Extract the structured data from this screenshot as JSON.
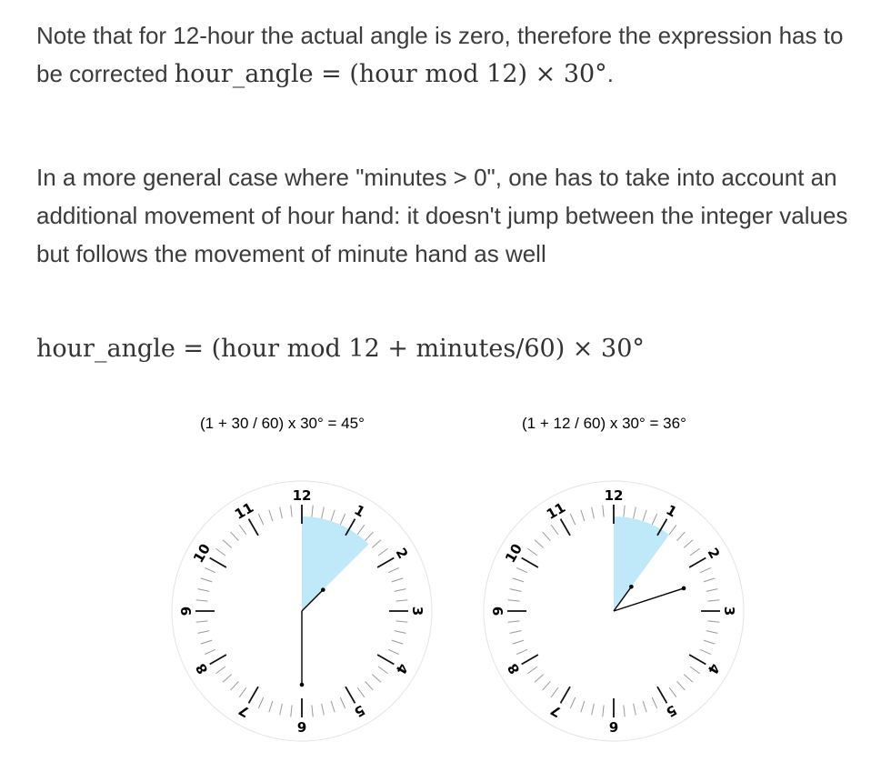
{
  "paragraph1": {
    "text_before": "Note that for 12-hour the actual angle is zero, therefore the expression has to be corrected ",
    "formula": "hour_angle = (hour mod 12) × 30°",
    "text_after": "."
  },
  "paragraph2": {
    "text": "In a more general case where \"minutes > 0\", one has to take into account an additional movement of hour hand: it doesn't jump between the integer values but follows the movement of minute hand as well"
  },
  "formula_block": "hour_angle = (hour mod 12 + minutes/60) × 30°",
  "clocks": [
    {
      "caption": "(1 + 30 / 60) x 30° = 45°",
      "hour": 1,
      "minute": 30,
      "angle_deg": 45,
      "numbers": [
        "12",
        "1",
        "2",
        "3",
        "4",
        "5",
        "6",
        "7",
        "8",
        "9",
        "10",
        "11"
      ],
      "sector_color": "#bfe9f8"
    },
    {
      "caption": "(1 + 12 / 60) x 30° = 36°",
      "hour": 1,
      "minute": 12,
      "angle_deg": 36,
      "numbers": [
        "12",
        "1",
        "2",
        "3",
        "4",
        "5",
        "6",
        "7",
        "8",
        "9",
        "10",
        "11"
      ],
      "sector_color": "#bfe9f8"
    }
  ]
}
